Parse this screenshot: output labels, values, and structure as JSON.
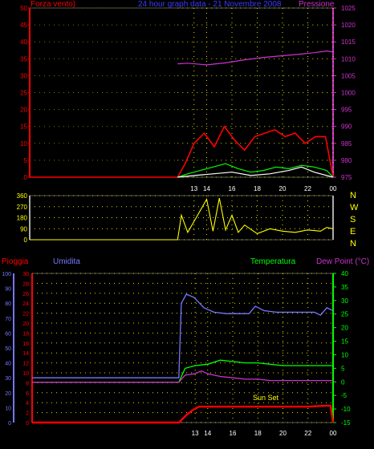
{
  "header": {
    "wind_label": "Forza vento)",
    "title": "24 hour graph data - 21 Novembre 2008",
    "pressure_label": "Pressione"
  },
  "middle": {
    "compass": [
      "N",
      "W",
      "S",
      "E",
      "N"
    ]
  },
  "bottom_header": {
    "rain_label": "Pioggia",
    "humidity_label": "Umidita",
    "temperature_label": "Temperatura",
    "dewpoint_label": "Dew Point (°C)"
  },
  "annotation": {
    "sunset": "Sun Set"
  },
  "colors": {
    "wind": "#ff0000",
    "gust": "#ffffff",
    "wind_avg": "#00ff00",
    "pressure": "#cc33cc",
    "direction": "#ffff00",
    "rain": "#ff0000",
    "humidity": "#7777ff",
    "temperature": "#00ff00",
    "dewpoint": "#cc33cc",
    "grid": "#dddd00",
    "pre_data": "#777700"
  },
  "chart_data": [
    {
      "type": "line",
      "panel": "wind_pressure",
      "x_ticks": [
        "13",
        "14",
        "16",
        "18",
        "20",
        "22",
        "00"
      ],
      "y_left": {
        "ticks": [
          0,
          5,
          10,
          15,
          20,
          25,
          30,
          35,
          40,
          45,
          50
        ],
        "ylim": [
          0,
          50
        ]
      },
      "y_right": {
        "ticks": [
          975,
          980,
          985,
          990,
          995,
          1000,
          1005,
          1010,
          1015,
          1020,
          1025
        ],
        "ylim": [
          975,
          1025
        ]
      },
      "xlim": [
        0,
        24
      ],
      "data_start_hour": 11.7,
      "grid": true,
      "series": [
        {
          "key": "pressure",
          "axis": "right",
          "x": [
            11.7,
            12.5,
            14,
            15.5,
            17,
            18.5,
            20,
            21.5,
            22.5,
            23.5,
            24
          ],
          "y": [
            1008.5,
            1008.7,
            1008.2,
            1008.8,
            1009.7,
            1010.4,
            1010.9,
            1011.4,
            1011.8,
            1012.3,
            1012.0
          ]
        },
        {
          "key": "wind",
          "axis": "left",
          "x": [
            0,
            11.7,
            12.3,
            13,
            13.8,
            14.6,
            15.4,
            16.2,
            17,
            17.8,
            18.6,
            19.4,
            20.2,
            21,
            21.8,
            22.6,
            23.4,
            24
          ],
          "y": [
            0,
            0,
            4,
            10,
            13,
            9,
            15,
            11,
            8,
            12,
            13,
            14,
            12,
            13,
            10,
            12,
            12,
            0
          ]
        },
        {
          "key": "wind_avg",
          "axis": "left",
          "x": [
            11.7,
            12.5,
            13.5,
            14.5,
            15.5,
            16.5,
            17.5,
            18.5,
            19.5,
            20.5,
            21.5,
            22.5,
            23.5,
            24
          ],
          "y": [
            0,
            1,
            2,
            3,
            4,
            2.5,
            1.5,
            2,
            3,
            2.5,
            3.5,
            3,
            2,
            0
          ]
        },
        {
          "key": "gust",
          "axis": "left",
          "x": [
            11.7,
            13,
            14.5,
            16,
            17.5,
            19,
            20.5,
            21.5,
            22.5,
            24
          ],
          "y": [
            0,
            0.5,
            1,
            1.5,
            0.5,
            1,
            2,
            3,
            1.5,
            0
          ]
        }
      ]
    },
    {
      "type": "line",
      "panel": "wind_direction",
      "y_ticks": [
        0,
        90,
        180,
        270,
        360
      ],
      "ylim": [
        0,
        360
      ],
      "xlim": [
        0,
        24
      ],
      "data_start_hour": 11.7,
      "grid": true,
      "series": [
        {
          "key": "direction",
          "x": [
            0,
            11.7,
            12,
            12.5,
            13,
            14,
            14.5,
            15,
            15.5,
            16,
            16.5,
            17,
            18,
            19,
            20,
            21,
            22,
            23,
            23.5,
            24
          ],
          "y": [
            0,
            0,
            200,
            60,
            150,
            330,
            70,
            340,
            80,
            200,
            60,
            120,
            50,
            90,
            70,
            60,
            80,
            70,
            100,
            90
          ]
        }
      ]
    },
    {
      "type": "line",
      "panel": "rain_humidity_temperature",
      "x_ticks": [
        "13",
        "14",
        "16",
        "18",
        "20",
        "22",
        "00"
      ],
      "y_rain": {
        "ticks": [
          0,
          2,
          4,
          6,
          8,
          10,
          12,
          14,
          16,
          18,
          20,
          22,
          24,
          26,
          28,
          30
        ],
        "ylim": [
          0,
          30
        ]
      },
      "y_humidity": {
        "ticks": [
          0,
          10,
          20,
          30,
          40,
          50,
          60,
          70,
          80,
          90,
          100
        ],
        "ylim": [
          0,
          100
        ]
      },
      "y_temperature": {
        "ticks": [
          -15,
          -10,
          -5,
          0,
          5,
          10,
          15,
          20,
          25,
          30,
          35,
          40
        ],
        "ylim": [
          -15,
          40
        ]
      },
      "xlim": [
        0,
        24
      ],
      "grid": true,
      "series": [
        {
          "key": "humidity",
          "axis": "humidity",
          "x": [
            0,
            11.7,
            11.9,
            12.3,
            12.9,
            13.7,
            14.5,
            15.5,
            16.5,
            17.3,
            17.8,
            18.5,
            19.5,
            20.5,
            21.5,
            22.5,
            23,
            23.5,
            24
          ],
          "y": [
            30,
            30,
            80,
            86,
            84,
            77,
            74,
            73,
            73,
            73,
            78,
            75,
            74,
            74,
            74,
            74,
            72,
            77,
            75
          ]
        },
        {
          "key": "temperature",
          "axis": "temperature",
          "x": [
            0,
            11.7,
            12.2,
            13,
            14,
            15,
            16,
            17,
            18,
            19,
            20,
            21,
            22,
            23,
            24
          ],
          "y": [
            -0.2,
            -0.2,
            5,
            6,
            6.5,
            8,
            7.5,
            7,
            7,
            6.5,
            6,
            6,
            6,
            6,
            6
          ]
        },
        {
          "key": "dewpoint",
          "axis": "temperature",
          "x": [
            0,
            11.7,
            12.2,
            13,
            13.5,
            14,
            15,
            16,
            17,
            18,
            19,
            20,
            21,
            22,
            23,
            24
          ],
          "y": [
            -0.2,
            -0.2,
            2.5,
            3,
            4,
            3,
            2,
            1.5,
            1,
            1,
            0.5,
            0.5,
            0.5,
            0.5,
            0.5,
            0.5
          ]
        },
        {
          "key": "rain",
          "axis": "rain",
          "x": [
            0,
            11.7,
            12.3,
            12.8,
            13.3,
            14,
            16,
            18,
            20,
            22,
            23.5,
            23.8,
            24
          ],
          "y": [
            0,
            0,
            1.5,
            2.5,
            3.2,
            3.2,
            3.2,
            3.2,
            3.2,
            3.2,
            3.4,
            3.4,
            0
          ]
        }
      ]
    }
  ]
}
